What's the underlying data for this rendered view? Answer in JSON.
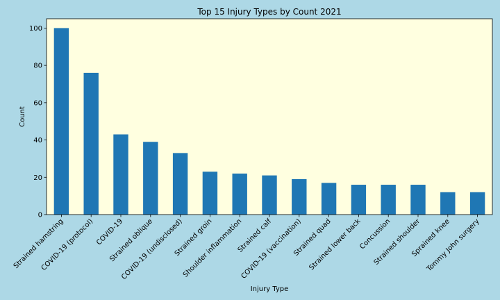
{
  "chart_data": {
    "type": "bar",
    "title": "Top 15 Injury Types by Count 2021",
    "xlabel": "Injury Type",
    "ylabel": "Count",
    "categories": [
      "Strained hamstring",
      "COVID-19 (protocol)",
      "COVID-19",
      "Strained oblique",
      "COVID-19 (undisclosed)",
      "Strained groin",
      "Shoulder inflammation",
      "Strained calf",
      "COVID-19 (vaccination)",
      "Strained quad",
      "Strained lower back",
      "Concussion",
      "Strained shoulder",
      "Sprained knee",
      "Tommy John surgery"
    ],
    "values": [
      100,
      76,
      43,
      39,
      33,
      23,
      22,
      21,
      19,
      17,
      16,
      16,
      16,
      12,
      12
    ],
    "ylim": [
      0,
      105
    ],
    "yticks": [
      0,
      20,
      40,
      60,
      80,
      100
    ],
    "grid": false,
    "legend": "none",
    "colors": {
      "bar": "#1f77b4",
      "plot_background": "#ffffe0",
      "figure_background": "#add8e6"
    }
  }
}
